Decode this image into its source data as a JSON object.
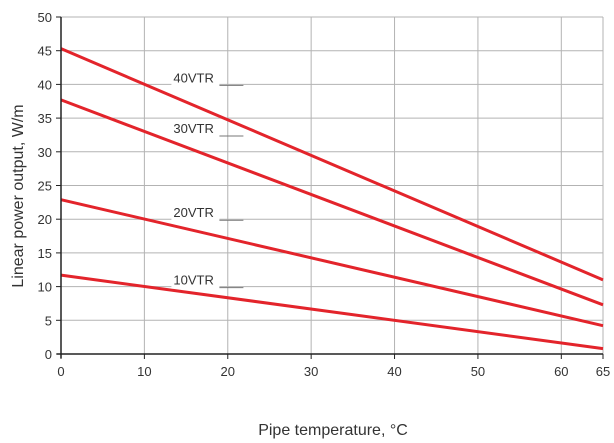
{
  "chart_data": {
    "type": "line",
    "title": "",
    "xlabel": "Pipe temperature, °C",
    "ylabel": "Linear power output, W/m",
    "xlim": [
      0,
      65
    ],
    "ylim": [
      0,
      50
    ],
    "x_ticks": [
      0,
      10,
      20,
      30,
      40,
      50,
      60,
      65
    ],
    "y_ticks": [
      0,
      5,
      10,
      15,
      20,
      25,
      30,
      35,
      40,
      45,
      50
    ],
    "x_gridlines": [
      0,
      10,
      20,
      30,
      40,
      50,
      60,
      65
    ],
    "y_gridlines": [
      0,
      5,
      10,
      15,
      20,
      25,
      30,
      35,
      40,
      45,
      50
    ],
    "grid": true,
    "legend": "inline labels",
    "series": [
      {
        "name": "40VTR",
        "x": [
          0,
          65
        ],
        "y": [
          45.3,
          11.0
        ],
        "color": "#e3242b",
        "label_at": [
          13,
          40
        ]
      },
      {
        "name": "30VTR",
        "x": [
          0,
          65
        ],
        "y": [
          37.7,
          7.3
        ],
        "color": "#e3242b",
        "label_at": [
          13,
          32.5
        ]
      },
      {
        "name": "20VTR",
        "x": [
          0,
          65
        ],
        "y": [
          22.9,
          4.2
        ],
        "color": "#e3242b",
        "label_at": [
          13,
          20
        ]
      },
      {
        "name": "10VTR",
        "x": [
          0,
          65
        ],
        "y": [
          11.7,
          0.8
        ],
        "color": "#e3242b",
        "label_at": [
          13,
          10
        ]
      }
    ]
  }
}
